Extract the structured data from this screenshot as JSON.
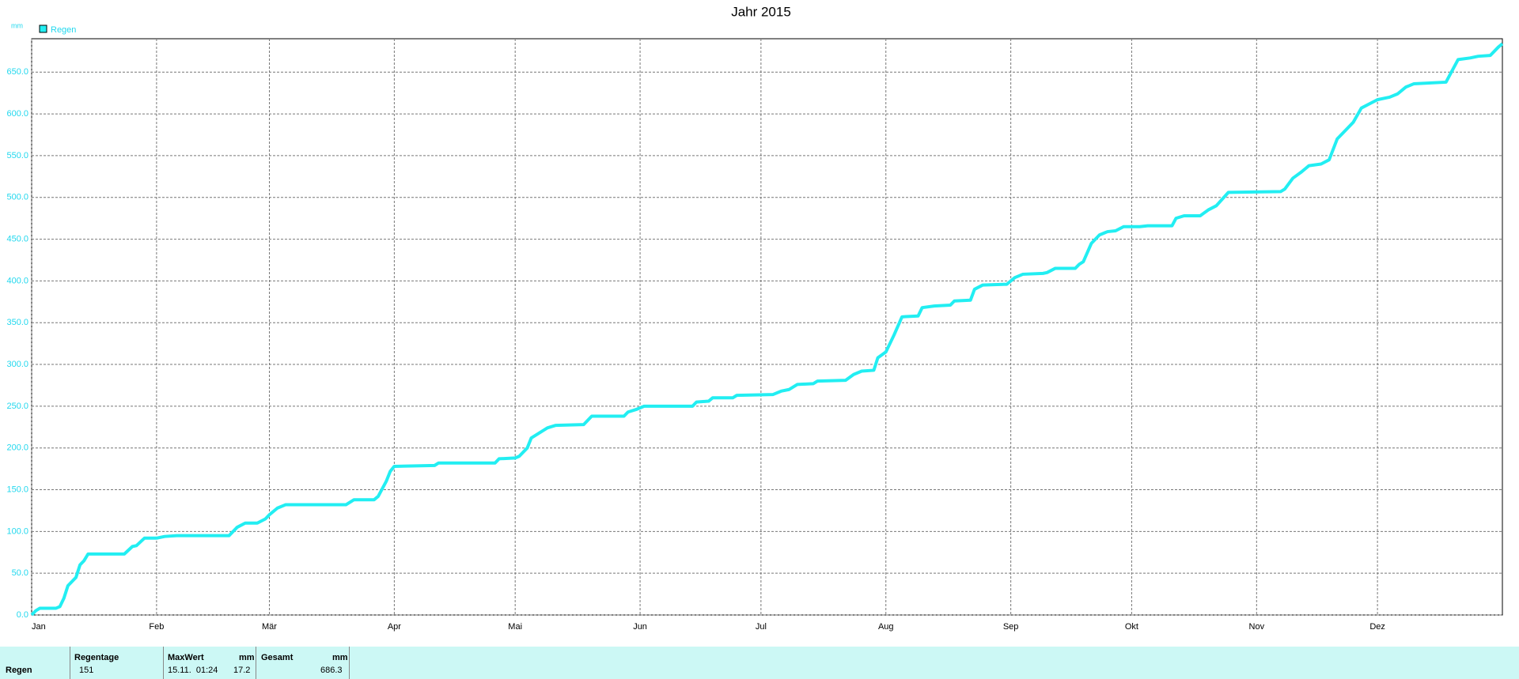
{
  "chart_data": {
    "type": "line",
    "title": "Jahr 2015",
    "y_label": "mm",
    "x": [
      0,
      1,
      2,
      6,
      7,
      8,
      9,
      11,
      12,
      13,
      14,
      23,
      25,
      26,
      28,
      31,
      33,
      36,
      49,
      51,
      53,
      56,
      58,
      59,
      61,
      63,
      78,
      80,
      85,
      86,
      88,
      89,
      90,
      100,
      101,
      115,
      116,
      120,
      121,
      123,
      124,
      126,
      128,
      130,
      137,
      139,
      147,
      148,
      150,
      152,
      164,
      165,
      168,
      169,
      174,
      175,
      184,
      186,
      188,
      190,
      194,
      195,
      202,
      204,
      206,
      209,
      210,
      212,
      214,
      216,
      220,
      221,
      224,
      228,
      229,
      233,
      234,
      236,
      242,
      244,
      246,
      251,
      252,
      254,
      259,
      260,
      261,
      263,
      265,
      267,
      269,
      271,
      275,
      277,
      283,
      284,
      286,
      290,
      292,
      294,
      297,
      310,
      311,
      313,
      315,
      317,
      320,
      322,
      324,
      326,
      328,
      330,
      332,
      334,
      337,
      339,
      341,
      343,
      351,
      354,
      357,
      359,
      362,
      364,
      365
    ],
    "series": [
      {
        "name": "Regen",
        "color": "#22eef2",
        "values": [
          0,
          5,
          8,
          8,
          10,
          20,
          35,
          45,
          60,
          65,
          73,
          73,
          82,
          83,
          92,
          92,
          94,
          95,
          95,
          105,
          110,
          110,
          115,
          120,
          128,
          132,
          132,
          138,
          138,
          142,
          160,
          172,
          178,
          179,
          182,
          182,
          187,
          188,
          190,
          200,
          212,
          218,
          224,
          227,
          228,
          238,
          238,
          243,
          246,
          250,
          250,
          255,
          256,
          260,
          260,
          263,
          264,
          268,
          270,
          276,
          277,
          280,
          281,
          288,
          292,
          293,
          308,
          315,
          335,
          357,
          358,
          368,
          370,
          371,
          376,
          377,
          390,
          395,
          396,
          404,
          408,
          409,
          410,
          415,
          415,
          420,
          423,
          445,
          455,
          459,
          460,
          465,
          465,
          466,
          466,
          475,
          478,
          478,
          485,
          490,
          506,
          507,
          510,
          523,
          530,
          538,
          540,
          545,
          570,
          580,
          590,
          607,
          612,
          617,
          620,
          624,
          632,
          636,
          638,
          665,
          667,
          669,
          670,
          680,
          684
        ]
      }
    ],
    "xlim": [
      0,
      365
    ],
    "xticks": [
      {
        "value": 0,
        "label": "Jan"
      },
      {
        "value": 31,
        "label": "Feb"
      },
      {
        "value": 59,
        "label": "Mär"
      },
      {
        "value": 90,
        "label": "Apr"
      },
      {
        "value": 120,
        "label": "Mai"
      },
      {
        "value": 151,
        "label": "Jun"
      },
      {
        "value": 181,
        "label": "Jul"
      },
      {
        "value": 212,
        "label": "Aug"
      },
      {
        "value": 243,
        "label": "Sep"
      },
      {
        "value": 273,
        "label": "Okt"
      },
      {
        "value": 304,
        "label": "Nov"
      },
      {
        "value": 334,
        "label": "Dez"
      }
    ],
    "ylim": [
      0,
      690
    ],
    "yticks": [
      {
        "value": 0,
        "label": "0.0"
      },
      {
        "value": 50,
        "label": "50.0"
      },
      {
        "value": 100,
        "label": "100.0"
      },
      {
        "value": 150,
        "label": "150.0"
      },
      {
        "value": 200,
        "label": "200.0"
      },
      {
        "value": 250,
        "label": "250.0"
      },
      {
        "value": 300,
        "label": "300.0"
      },
      {
        "value": 350,
        "label": "350.0"
      },
      {
        "value": 400,
        "label": "400.0"
      },
      {
        "value": 450,
        "label": "450.0"
      },
      {
        "value": 500,
        "label": "500.0"
      },
      {
        "value": 550,
        "label": "550.0"
      },
      {
        "value": 600,
        "label": "600.0"
      },
      {
        "value": 650,
        "label": "650.0"
      }
    ],
    "grid": true,
    "legend": "top-left"
  },
  "table": {
    "header": [
      "Regentage",
      "MaxWert",
      "mm",
      "Gesamt",
      "mm"
    ],
    "rows": [
      [
        "Regen",
        "151",
        "15.11.  01:24",
        "17.2",
        "686.3"
      ]
    ]
  }
}
